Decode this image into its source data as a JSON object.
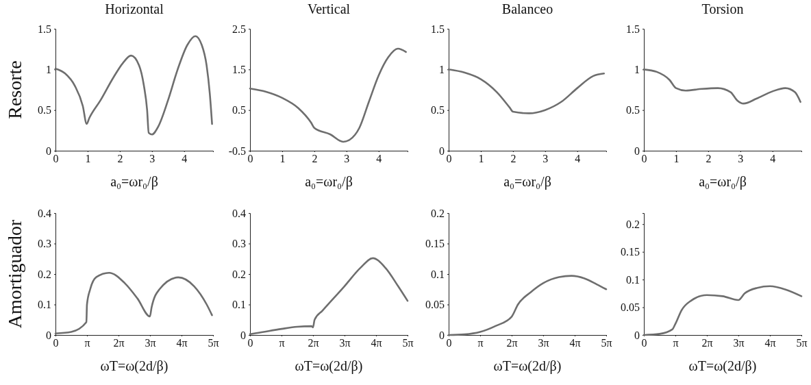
{
  "chart_data": [
    {
      "type": "line",
      "title": "Horizontal",
      "ylabel": "Resorte",
      "xlabel": "a₀=ωr₀/β",
      "xlim": [
        0,
        4.9
      ],
      "xticks": [
        0,
        1,
        2,
        3,
        4
      ],
      "ylim": [
        0,
        1.5
      ],
      "yticks": [
        0,
        0.5,
        1,
        1.5
      ],
      "grid": false,
      "series": [
        {
          "color": "#6e6e6e",
          "x": [
            0,
            0.3,
            0.6,
            0.85,
            0.97,
            1.05,
            1.4,
            1.8,
            2.1,
            2.35,
            2.6,
            2.75,
            2.85,
            2.9,
            3.0,
            3.2,
            3.5,
            3.8,
            4.1,
            4.35,
            4.55,
            4.7,
            4.8,
            4.87
          ],
          "values": [
            1.01,
            0.95,
            0.8,
            0.55,
            0.33,
            0.4,
            0.62,
            0.9,
            1.08,
            1.17,
            1.05,
            0.8,
            0.5,
            0.22,
            0.2,
            0.3,
            0.62,
            1.0,
            1.3,
            1.41,
            1.3,
            1.05,
            0.7,
            0.33
          ]
        }
      ]
    },
    {
      "type": "line",
      "title": "Vertical",
      "xlabel": "a₀=ωr₀/β",
      "xlim": [
        0,
        4.9
      ],
      "xticks": [
        0,
        1,
        2,
        3,
        4
      ],
      "ylim": [
        -0.5,
        2.5
      ],
      "yticks": [
        -0.5,
        0.5,
        1.5,
        2.5
      ],
      "grid": false,
      "series": [
        {
          "color": "#6e6e6e",
          "x": [
            0,
            0.5,
            1,
            1.5,
            1.9,
            2,
            2.5,
            2.9,
            3.1,
            3.4,
            3.7,
            4,
            4.3,
            4.6,
            4.85
          ],
          "values": [
            1.03,
            0.95,
            0.8,
            0.55,
            0.19,
            0.06,
            -0.1,
            -0.28,
            -0.23,
            0.06,
            0.71,
            1.35,
            1.8,
            2.01,
            1.93
          ]
        }
      ]
    },
    {
      "type": "line",
      "title": "Balanceo",
      "xlabel": "a₀=ωr₀/β",
      "xlim": [
        0,
        4.9
      ],
      "xticks": [
        0,
        1,
        2,
        3,
        4
      ],
      "ylim": [
        0,
        1.5
      ],
      "yticks": [
        0,
        0.5,
        1,
        1.5
      ],
      "grid": false,
      "series": [
        {
          "color": "#6e6e6e",
          "x": [
            0,
            0.5,
            1,
            1.5,
            1.9,
            2.0,
            2.5,
            3,
            3.5,
            4,
            4.5,
            4.83
          ],
          "values": [
            1.0,
            0.96,
            0.88,
            0.72,
            0.53,
            0.48,
            0.46,
            0.5,
            0.6,
            0.77,
            0.92,
            0.95
          ]
        }
      ]
    },
    {
      "type": "line",
      "title": "Torsion",
      "xlabel": "a₀=ωr₀/β",
      "xlim": [
        0,
        4.9
      ],
      "xticks": [
        0,
        1,
        2,
        3,
        4
      ],
      "ylim": [
        0,
        1.5
      ],
      "yticks": [
        0,
        0.5,
        1,
        1.5
      ],
      "grid": false,
      "series": [
        {
          "color": "#6e6e6e",
          "x": [
            0,
            0.4,
            0.8,
            1.0,
            1.3,
            1.8,
            2.3,
            2.7,
            2.9,
            3.1,
            3.5,
            4.0,
            4.4,
            4.7,
            4.87
          ],
          "values": [
            1.0,
            0.97,
            0.87,
            0.77,
            0.74,
            0.76,
            0.77,
            0.72,
            0.62,
            0.58,
            0.64,
            0.73,
            0.77,
            0.72,
            0.6
          ]
        }
      ]
    },
    {
      "type": "line",
      "ylabel": "Amortiguador",
      "xlabel": "ωT=ω(2d/β)",
      "xlim": [
        0,
        15.71
      ],
      "xticks": [
        0,
        {
          "value": 3.14,
          "label": "π"
        },
        {
          "value": 6.28,
          "label": "2π"
        },
        {
          "value": 9.42,
          "label": "3π"
        },
        {
          "value": 12.57,
          "label": "4π"
        },
        {
          "value": 15.71,
          "label": "5π"
        }
      ],
      "ylim": [
        0,
        0.4
      ],
      "yticks": [
        0,
        0.1,
        0.2,
        0.3,
        0.4
      ],
      "grid": false,
      "series": [
        {
          "color": "#6e6e6e",
          "x": [
            0,
            1.57,
            3.08,
            3.14,
            3.46,
            4.08,
            5.34,
            6.91,
            8.17,
            9.42,
            9.58,
            10.37,
            12.25,
            13.82,
            15.08,
            15.61
          ],
          "values": [
            0.005,
            0.01,
            0.042,
            0.1,
            0.15,
            0.19,
            0.204,
            0.17,
            0.12,
            0.061,
            0.09,
            0.15,
            0.189,
            0.16,
            0.1,
            0.065
          ]
        }
      ]
    },
    {
      "type": "line",
      "xlabel": "ωT=ω(2d/β)",
      "xlim": [
        0,
        15.71
      ],
      "xticks": [
        0,
        {
          "value": 3.14,
          "label": "π"
        },
        {
          "value": 6.28,
          "label": "2π"
        },
        {
          "value": 9.42,
          "label": "3π"
        },
        {
          "value": 12.57,
          "label": "4π"
        },
        {
          "value": 15.71,
          "label": "5π"
        }
      ],
      "ylim": [
        0,
        0.4
      ],
      "yticks": [
        0,
        0.1,
        0.2,
        0.3,
        0.4
      ],
      "grid": false,
      "series": [
        {
          "color": "#6e6e6e",
          "x": [
            0,
            0.63,
            3.14,
            4.71,
            6.13,
            6.28,
            6.44,
            7.23,
            9.42,
            11.0,
            12.25,
            13.51,
            14.77,
            15.71
          ],
          "values": [
            0.003,
            0.006,
            0.02,
            0.027,
            0.029,
            0.025,
            0.05,
            0.08,
            0.16,
            0.22,
            0.252,
            0.22,
            0.16,
            0.112
          ]
        }
      ]
    },
    {
      "type": "line",
      "xlabel": "ωT=ω(2d/β)",
      "xlim": [
        0,
        15.71
      ],
      "xticks": [
        0,
        {
          "value": 3.14,
          "label": "π"
        },
        {
          "value": 6.28,
          "label": "2π"
        },
        {
          "value": 9.42,
          "label": "3π"
        },
        {
          "value": 12.57,
          "label": "4π"
        },
        {
          "value": 15.71,
          "label": "5π"
        }
      ],
      "ylim": [
        0,
        0.2
      ],
      "yticks": [
        0,
        0.05,
        0.1,
        0.15,
        0.2
      ],
      "grid": false,
      "series": [
        {
          "color": "#6e6e6e",
          "x": [
            0,
            1.57,
            3.14,
            4.71,
            6.28,
            6.91,
            8.17,
            9.42,
            11.0,
            12.25,
            13.51,
            14.77,
            15.71
          ],
          "values": [
            0,
            0.001,
            0.005,
            0.015,
            0.03,
            0.05,
            0.07,
            0.085,
            0.095,
            0.097,
            0.093,
            0.083,
            0.075
          ]
        }
      ]
    },
    {
      "type": "line",
      "xlabel": "ωT=ω(2d/β)",
      "xlim": [
        0,
        15.71
      ],
      "xticks": [
        0,
        {
          "value": 3.14,
          "label": "π"
        },
        {
          "value": 6.28,
          "label": "2π"
        },
        {
          "value": 9.42,
          "label": "3π"
        },
        {
          "value": 12.57,
          "label": "4π"
        },
        {
          "value": 15.71,
          "label": "5π"
        }
      ],
      "ylim": [
        0,
        0.22
      ],
      "yticks": [
        0,
        0.05,
        0.1,
        0.15,
        0.2
      ],
      "grid": false,
      "series": [
        {
          "color": "#6e6e6e",
          "x": [
            0,
            1.57,
            2.83,
            3.14,
            3.77,
            4.71,
            6.28,
            7.85,
            9.42,
            10.05,
            11.31,
            12.57,
            14.14,
            15.71
          ],
          "values": [
            0,
            0.002,
            0.01,
            0.02,
            0.045,
            0.062,
            0.072,
            0.07,
            0.063,
            0.075,
            0.085,
            0.088,
            0.082,
            0.07
          ]
        }
      ]
    }
  ]
}
